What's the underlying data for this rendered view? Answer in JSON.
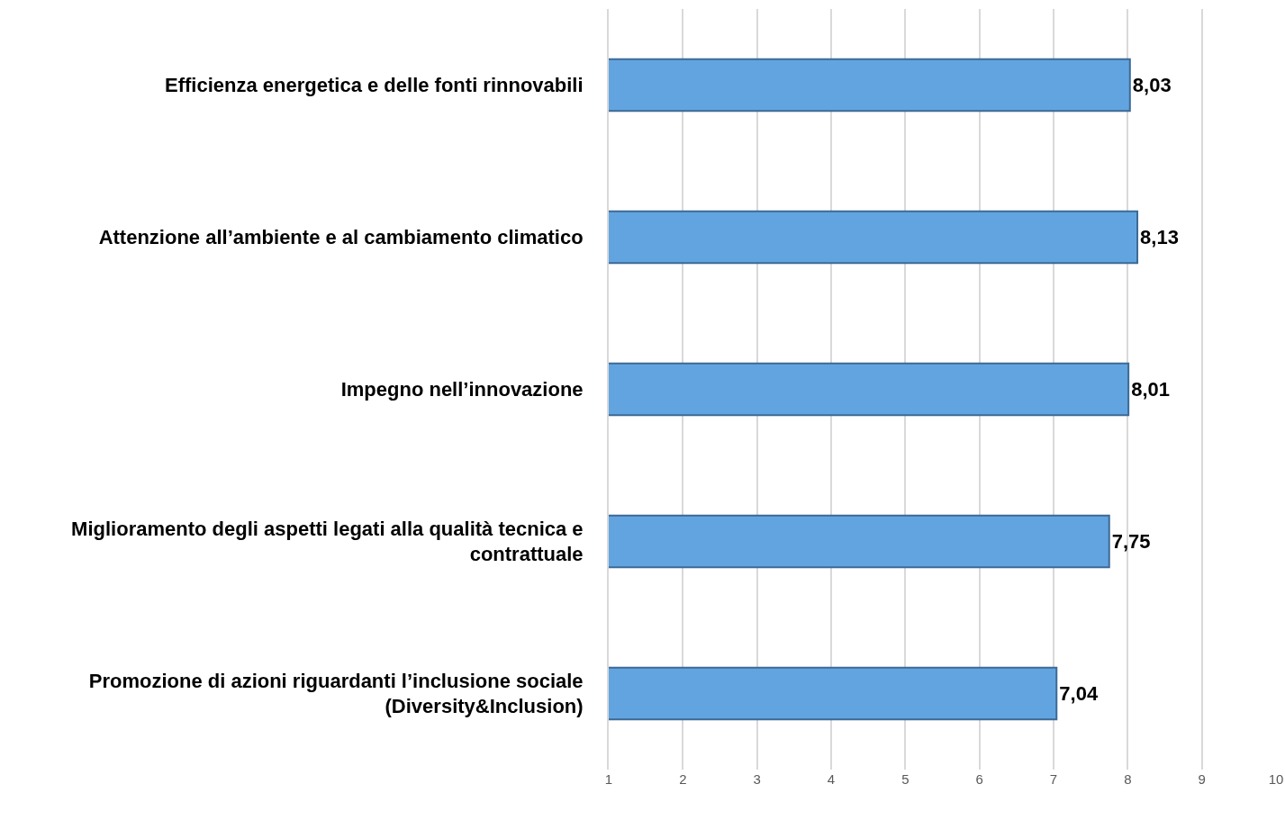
{
  "chart_data": {
    "type": "bar",
    "orientation": "horizontal",
    "categories": [
      "Efficienza energetica e delle fonti rinnovabili",
      "Attenzione all’ambiente e al cambiamento climatico",
      "Impegno nell’innovazione",
      "Miglioramento degli aspetti legati alla qualità tecnica e contrattuale",
      "Promozione di azioni riguardanti l’inclusione sociale (Diversity&Inclusion)"
    ],
    "values": [
      8.03,
      8.13,
      8.01,
      7.75,
      7.04
    ],
    "value_labels": [
      "8,03",
      "8,13",
      "8,01",
      "7,75",
      "7,04"
    ],
    "color": "#62a4df",
    "xlim": [
      1,
      10
    ],
    "xticks": [
      1,
      2,
      3,
      4,
      5,
      6,
      7,
      8,
      9,
      10
    ],
    "grid": "x"
  }
}
